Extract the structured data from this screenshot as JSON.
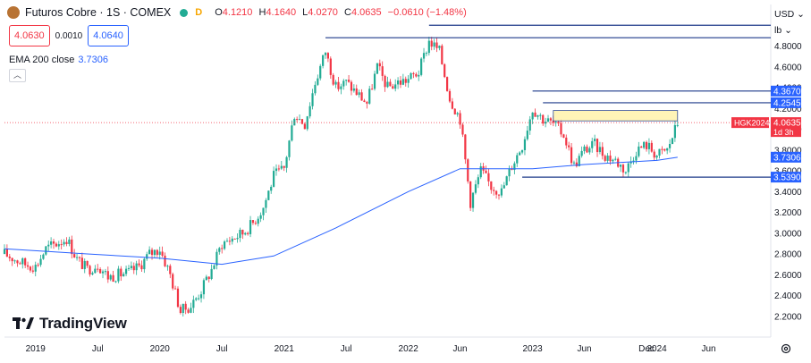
{
  "header": {
    "symbol": "Futuros Cobre · 1S · COMEX",
    "d_badge": "D",
    "ohlc": [
      {
        "k": "O",
        "v": "4.1210"
      },
      {
        "k": "H",
        "v": "4.1640"
      },
      {
        "k": "L",
        "v": "4.0270"
      },
      {
        "k": "C",
        "v": "4.0635"
      },
      {
        "k": "",
        "v": "−0.0610 (−1.48%)"
      }
    ]
  },
  "quote": {
    "sell": "4.0630",
    "spread": "0.0010",
    "buy": "4.0640"
  },
  "indicator": {
    "label": "EMA 200 close",
    "value": "3.7306"
  },
  "controls": {
    "currency": "USD",
    "unit": "lb",
    "currency_arrow": "⌄",
    "unit_arrow": "⌄"
  },
  "watermark": "TradingView",
  "colors": {
    "up": "#22ab94",
    "down": "#f23645",
    "ema": "#2962ff",
    "level": "#1e3a8a",
    "last": "#f23645",
    "zone": "#fff3b0"
  },
  "chart_data": {
    "type": "candlestick",
    "y_ticks": [
      "2.2000",
      "2.4000",
      "2.6000",
      "2.8000",
      "3.0000",
      "3.2000",
      "3.4000",
      "3.6000",
      "3.8000",
      "4.0000",
      "4.2000",
      "4.4000",
      "4.6000",
      "4.8000"
    ],
    "x_ticks": [
      {
        "label": "2019",
        "x": "2019-01"
      },
      {
        "label": "Jul",
        "x": "2019-07"
      },
      {
        "label": "2020",
        "x": "2020-01"
      },
      {
        "label": "Jul",
        "x": "2020-07"
      },
      {
        "label": "2021",
        "x": "2021-01"
      },
      {
        "label": "Jul",
        "x": "2021-07"
      },
      {
        "label": "2022",
        "x": "2022-01"
      },
      {
        "label": "Jun",
        "x": "2022-06"
      },
      {
        "label": "2023",
        "x": "2023-01"
      },
      {
        "label": "Jun",
        "x": "2023-06"
      },
      {
        "label": "Dec",
        "x": "2023-12"
      },
      {
        "label": "2024",
        "x": "2024-01"
      },
      {
        "label": "Jun",
        "x": "2024-06"
      }
    ],
    "ylim": [
      2.0,
      5.2
    ],
    "xlim": [
      "2018-10",
      "2024-12"
    ],
    "anchors": [
      [
        "2018-10",
        2.8
      ],
      [
        "2018-11",
        2.75
      ],
      [
        "2018-12",
        2.7
      ],
      [
        "2019-01",
        2.68
      ],
      [
        "2019-02",
        2.85
      ],
      [
        "2019-03",
        2.9
      ],
      [
        "2019-04",
        2.95
      ],
      [
        "2019-05",
        2.75
      ],
      [
        "2019-06",
        2.65
      ],
      [
        "2019-07",
        2.7
      ],
      [
        "2019-08",
        2.58
      ],
      [
        "2019-09",
        2.6
      ],
      [
        "2019-10",
        2.62
      ],
      [
        "2019-11",
        2.68
      ],
      [
        "2019-12",
        2.8
      ],
      [
        "2020-01",
        2.85
      ],
      [
        "2020-02",
        2.6
      ],
      [
        "2020-03",
        2.25
      ],
      [
        "2020-04",
        2.3
      ],
      [
        "2020-05",
        2.45
      ],
      [
        "2020-06",
        2.65
      ],
      [
        "2020-07",
        2.9
      ],
      [
        "2020-08",
        2.95
      ],
      [
        "2020-09",
        3.0
      ],
      [
        "2020-10",
        3.1
      ],
      [
        "2020-11",
        3.25
      ],
      [
        "2020-12",
        3.55
      ],
      [
        "2021-01",
        3.62
      ],
      [
        "2021-02",
        4.15
      ],
      [
        "2021-03",
        4.05
      ],
      [
        "2021-04",
        4.45
      ],
      [
        "2021-05",
        4.75
      ],
      [
        "2021-06",
        4.4
      ],
      [
        "2021-07",
        4.45
      ],
      [
        "2021-08",
        4.35
      ],
      [
        "2021-09",
        4.25
      ],
      [
        "2021-10",
        4.6
      ],
      [
        "2021-11",
        4.4
      ],
      [
        "2021-12",
        4.45
      ],
      [
        "2022-01",
        4.48
      ],
      [
        "2022-02",
        4.55
      ],
      [
        "2022-03",
        4.85
      ],
      [
        "2022-04",
        4.75
      ],
      [
        "2022-05",
        4.3
      ],
      [
        "2022-06",
        4.1
      ],
      [
        "2022-07",
        3.3
      ],
      [
        "2022-08",
        3.6
      ],
      [
        "2022-09",
        3.45
      ],
      [
        "2022-10",
        3.4
      ],
      [
        "2022-11",
        3.65
      ],
      [
        "2022-12",
        3.85
      ],
      [
        "2023-01",
        4.2
      ],
      [
        "2023-02",
        4.1
      ],
      [
        "2023-03",
        4.05
      ],
      [
        "2023-04",
        3.95
      ],
      [
        "2023-05",
        3.65
      ],
      [
        "2023-06",
        3.8
      ],
      [
        "2023-07",
        3.85
      ],
      [
        "2023-08",
        3.75
      ],
      [
        "2023-09",
        3.7
      ],
      [
        "2023-10",
        3.6
      ],
      [
        "2023-11",
        3.8
      ],
      [
        "2023-12",
        3.85
      ],
      [
        "2024-01",
        3.75
      ],
      [
        "2024-02",
        3.8
      ],
      [
        "2024-03",
        4.06
      ]
    ],
    "ema200": [
      [
        "2018-10",
        2.85
      ],
      [
        "2019-06",
        2.8
      ],
      [
        "2020-01",
        2.76
      ],
      [
        "2020-07",
        2.7
      ],
      [
        "2020-12",
        2.78
      ],
      [
        "2021-06",
        3.05
      ],
      [
        "2022-01",
        3.4
      ],
      [
        "2022-06",
        3.62
      ],
      [
        "2022-09",
        3.62
      ],
      [
        "2023-01",
        3.62
      ],
      [
        "2023-06",
        3.66
      ],
      [
        "2024-01",
        3.7
      ],
      [
        "2024-03",
        3.73
      ]
    ],
    "levels": [
      {
        "value": 4.88,
        "from": "2021-05",
        "label": ""
      },
      {
        "value": 5.0,
        "from": "2022-03",
        "label": ""
      },
      {
        "value": 4.367,
        "from": "2023-01",
        "label": "4.3670"
      },
      {
        "value": 4.2545,
        "from": "2023-02",
        "label": "4.2545"
      },
      {
        "value": 3.539,
        "from": "2022-12",
        "label": "3.5390"
      }
    ],
    "zone": {
      "from": "2023-03",
      "to": "2024-03",
      "top": 4.18,
      "bottom": 4.08
    },
    "last_price": {
      "symbol": "HGK2024",
      "value": "4.0635",
      "countdown": "1d 3h",
      "y": 4.0635
    },
    "ema_label": {
      "value": "3.7306",
      "y": 3.7306
    }
  }
}
